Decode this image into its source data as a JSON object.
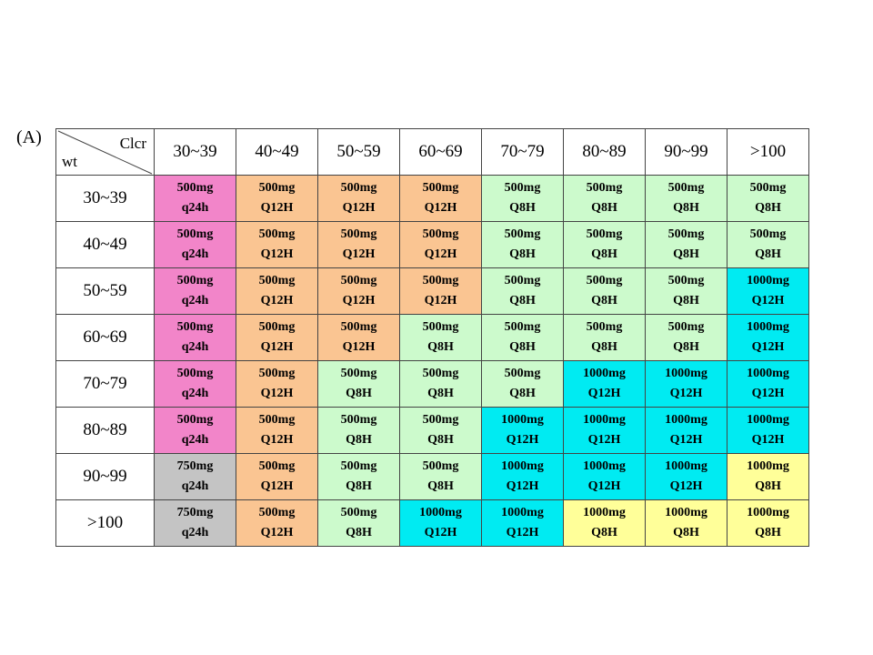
{
  "panel_label": "(A)",
  "header": {
    "corner_top": "Clcr",
    "corner_bottom": "wt"
  },
  "colors": {
    "pink": "#f285c9",
    "orange": "#fac592",
    "green": "#ccfacc",
    "cyan": "#00ebf2",
    "yellow": "#ffff99",
    "gray": "#c4c4c4"
  },
  "columns": [
    "30~39",
    "40~49",
    "50~59",
    "60~69",
    "70~79",
    "80~89",
    "90~99",
    ">100"
  ],
  "rows": [
    {
      "label": "30~39",
      "cells": [
        {
          "dose": "500mg",
          "freq": "q24h",
          "color": "pink"
        },
        {
          "dose": "500mg",
          "freq": "Q12H",
          "color": "orange"
        },
        {
          "dose": "500mg",
          "freq": "Q12H",
          "color": "orange"
        },
        {
          "dose": "500mg",
          "freq": "Q12H",
          "color": "orange"
        },
        {
          "dose": "500mg",
          "freq": "Q8H",
          "color": "green"
        },
        {
          "dose": "500mg",
          "freq": "Q8H",
          "color": "green"
        },
        {
          "dose": "500mg",
          "freq": "Q8H",
          "color": "green"
        },
        {
          "dose": "500mg",
          "freq": "Q8H",
          "color": "green"
        }
      ]
    },
    {
      "label": "40~49",
      "cells": [
        {
          "dose": "500mg",
          "freq": "q24h",
          "color": "pink"
        },
        {
          "dose": "500mg",
          "freq": "Q12H",
          "color": "orange"
        },
        {
          "dose": "500mg",
          "freq": "Q12H",
          "color": "orange"
        },
        {
          "dose": "500mg",
          "freq": "Q12H",
          "color": "orange"
        },
        {
          "dose": "500mg",
          "freq": "Q8H",
          "color": "green"
        },
        {
          "dose": "500mg",
          "freq": "Q8H",
          "color": "green"
        },
        {
          "dose": "500mg",
          "freq": "Q8H",
          "color": "green"
        },
        {
          "dose": "500mg",
          "freq": "Q8H",
          "color": "green"
        }
      ]
    },
    {
      "label": "50~59",
      "cells": [
        {
          "dose": "500mg",
          "freq": "q24h",
          "color": "pink"
        },
        {
          "dose": "500mg",
          "freq": "Q12H",
          "color": "orange"
        },
        {
          "dose": "500mg",
          "freq": "Q12H",
          "color": "orange"
        },
        {
          "dose": "500mg",
          "freq": "Q12H",
          "color": "orange"
        },
        {
          "dose": "500mg",
          "freq": "Q8H",
          "color": "green"
        },
        {
          "dose": "500mg",
          "freq": "Q8H",
          "color": "green"
        },
        {
          "dose": "500mg",
          "freq": "Q8H",
          "color": "green"
        },
        {
          "dose": "1000mg",
          "freq": "Q12H",
          "color": "cyan"
        }
      ]
    },
    {
      "label": "60~69",
      "cells": [
        {
          "dose": "500mg",
          "freq": "q24h",
          "color": "pink"
        },
        {
          "dose": "500mg",
          "freq": "Q12H",
          "color": "orange"
        },
        {
          "dose": "500mg",
          "freq": "Q12H",
          "color": "orange"
        },
        {
          "dose": "500mg",
          "freq": "Q8H",
          "color": "green"
        },
        {
          "dose": "500mg",
          "freq": "Q8H",
          "color": "green"
        },
        {
          "dose": "500mg",
          "freq": "Q8H",
          "color": "green"
        },
        {
          "dose": "500mg",
          "freq": "Q8H",
          "color": "green"
        },
        {
          "dose": "1000mg",
          "freq": "Q12H",
          "color": "cyan"
        }
      ]
    },
    {
      "label": "70~79",
      "cells": [
        {
          "dose": "500mg",
          "freq": "q24h",
          "color": "pink"
        },
        {
          "dose": "500mg",
          "freq": "Q12H",
          "color": "orange"
        },
        {
          "dose": "500mg",
          "freq": "Q8H",
          "color": "green"
        },
        {
          "dose": "500mg",
          "freq": "Q8H",
          "color": "green"
        },
        {
          "dose": "500mg",
          "freq": "Q8H",
          "color": "green"
        },
        {
          "dose": "1000mg",
          "freq": "Q12H",
          "color": "cyan"
        },
        {
          "dose": "1000mg",
          "freq": "Q12H",
          "color": "cyan"
        },
        {
          "dose": "1000mg",
          "freq": "Q12H",
          "color": "cyan"
        }
      ]
    },
    {
      "label": "80~89",
      "cells": [
        {
          "dose": "500mg",
          "freq": "q24h",
          "color": "pink"
        },
        {
          "dose": "500mg",
          "freq": "Q12H",
          "color": "orange"
        },
        {
          "dose": "500mg",
          "freq": "Q8H",
          "color": "green"
        },
        {
          "dose": "500mg",
          "freq": "Q8H",
          "color": "green"
        },
        {
          "dose": "1000mg",
          "freq": "Q12H",
          "color": "cyan"
        },
        {
          "dose": "1000mg",
          "freq": "Q12H",
          "color": "cyan"
        },
        {
          "dose": "1000mg",
          "freq": "Q12H",
          "color": "cyan"
        },
        {
          "dose": "1000mg",
          "freq": "Q12H",
          "color": "cyan"
        }
      ]
    },
    {
      "label": "90~99",
      "cells": [
        {
          "dose": "750mg",
          "freq": "q24h",
          "color": "gray"
        },
        {
          "dose": "500mg",
          "freq": "Q12H",
          "color": "orange"
        },
        {
          "dose": "500mg",
          "freq": "Q8H",
          "color": "green"
        },
        {
          "dose": "500mg",
          "freq": "Q8H",
          "color": "green"
        },
        {
          "dose": "1000mg",
          "freq": "Q12H",
          "color": "cyan"
        },
        {
          "dose": "1000mg",
          "freq": "Q12H",
          "color": "cyan"
        },
        {
          "dose": "1000mg",
          "freq": "Q12H",
          "color": "cyan"
        },
        {
          "dose": "1000mg",
          "freq": "Q8H",
          "color": "yellow"
        }
      ]
    },
    {
      "label": ">100",
      "cells": [
        {
          "dose": "750mg",
          "freq": "q24h",
          "color": "gray"
        },
        {
          "dose": "500mg",
          "freq": "Q12H",
          "color": "orange"
        },
        {
          "dose": "500mg",
          "freq": "Q8H",
          "color": "green"
        },
        {
          "dose": "1000mg",
          "freq": "Q12H",
          "color": "cyan"
        },
        {
          "dose": "1000mg",
          "freq": "Q12H",
          "color": "cyan"
        },
        {
          "dose": "1000mg",
          "freq": "Q8H",
          "color": "yellow"
        },
        {
          "dose": "1000mg",
          "freq": "Q8H",
          "color": "yellow"
        },
        {
          "dose": "1000mg",
          "freq": "Q8H",
          "color": "yellow"
        }
      ]
    }
  ]
}
